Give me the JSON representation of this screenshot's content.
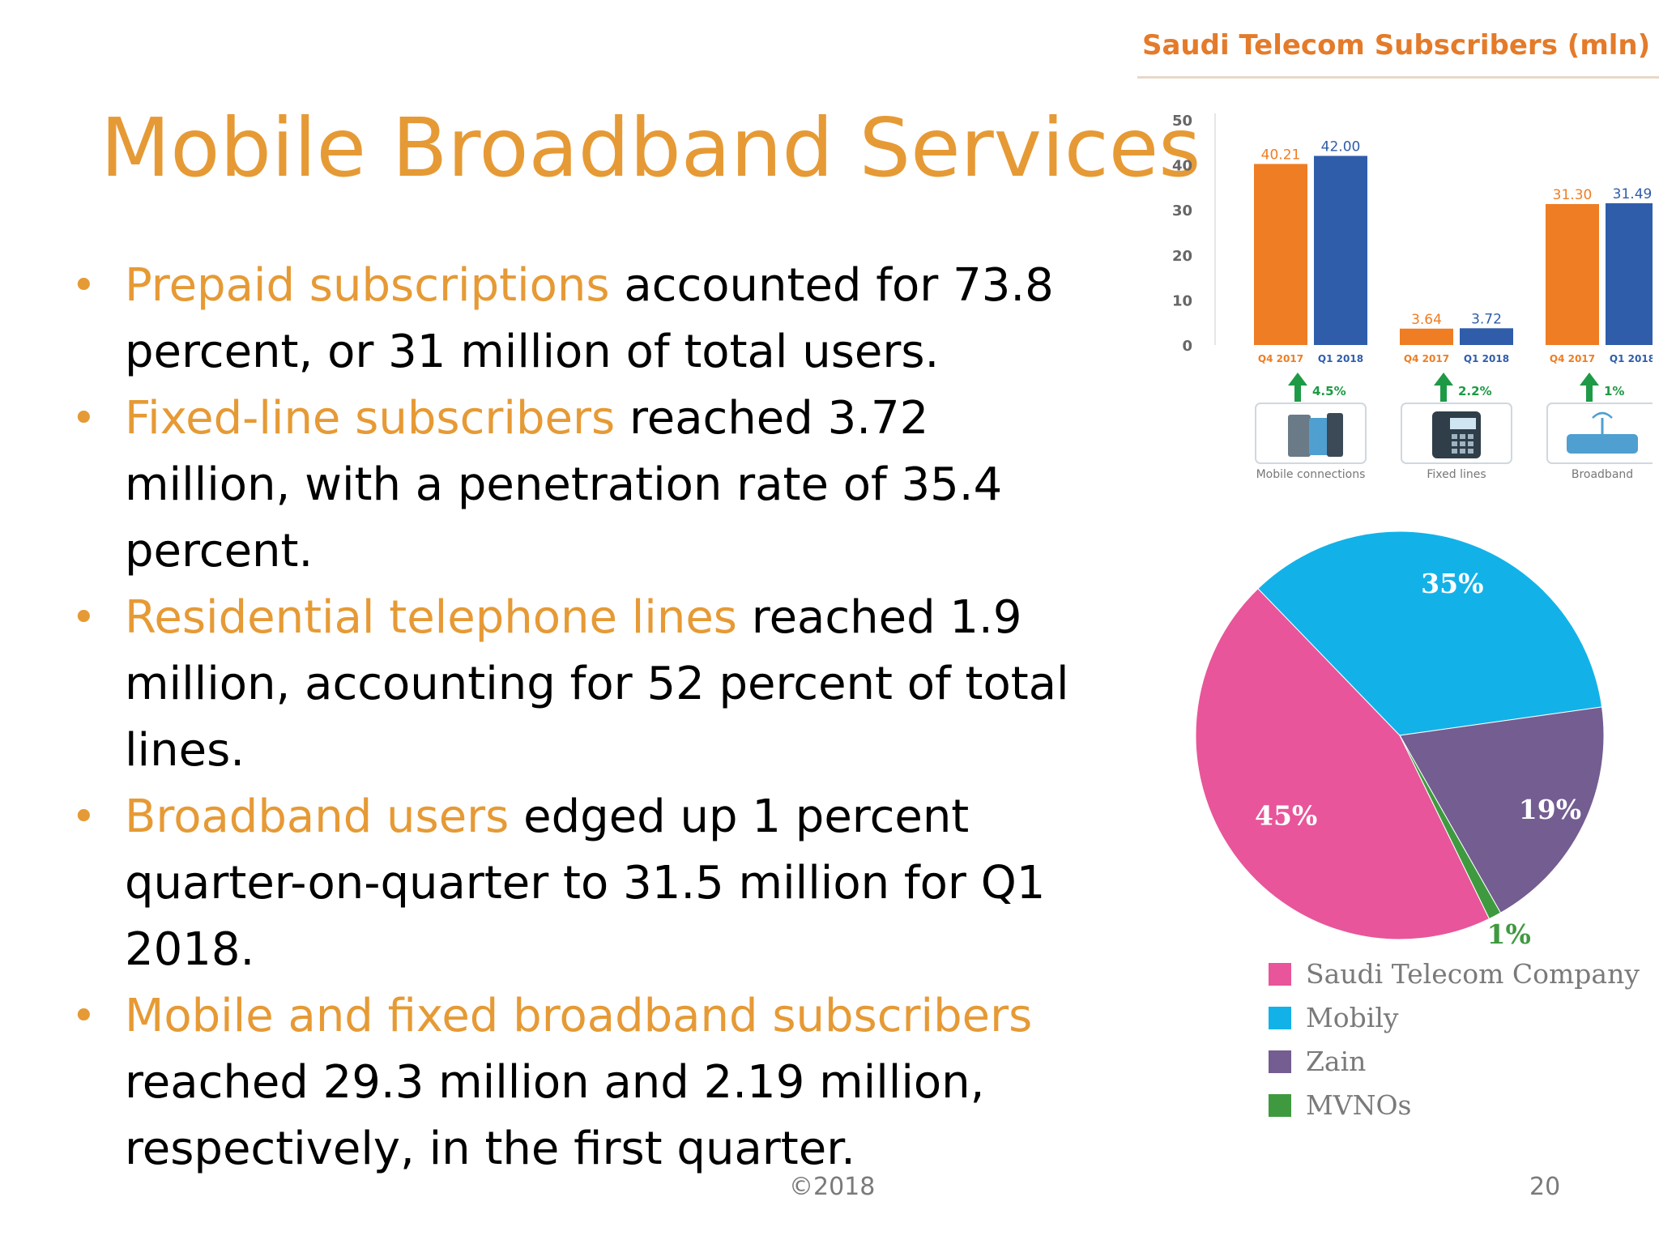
{
  "slide": {
    "title": "Mobile Broadband Services",
    "footer_center": "©2018",
    "page_number": "20",
    "accent_color": "#E69A35",
    "bullets": [
      {
        "highlight": "Prepaid subscriptions",
        "text": " accounted for 73.8 percent, or 31 million of total users."
      },
      {
        "highlight": "Fixed-line subscribers",
        "text": " reached 3.72 million, with a penetration rate of 35.4 percent."
      },
      {
        "highlight": "Residential telephone lines",
        "text": " reached 1.9 million, accounting for 52 percent of total lines."
      },
      {
        "highlight": "Broadband users",
        "text": " edged up 1 percent quarter-on-quarter to 31.5 million for Q1 2018."
      },
      {
        "highlight": "Mobile and fixed broadband subscribers",
        "text": " reached 29.3 million and 2.19 million, respectively, in the first quarter."
      }
    ]
  },
  "chart_data": [
    {
      "type": "bar",
      "title": "Saudi Telecom Subscribers (mln)",
      "ylim": [
        0,
        50
      ],
      "yticks": [
        0,
        10,
        20,
        30,
        40,
        50
      ],
      "categories": [
        "Mobile connections",
        "Fixed lines",
        "Broadband"
      ],
      "period_labels": [
        "Q4 2017",
        "Q1 2018"
      ],
      "series": [
        {
          "color": "#EE7D23",
          "values": [
            40.21,
            3.64,
            31.3
          ]
        },
        {
          "color": "#2F5DAA",
          "values": [
            42.0,
            3.72,
            31.49
          ]
        }
      ],
      "value_labels": [
        [
          "40.21",
          "3.64",
          "31.30"
        ],
        [
          "42.00",
          "3.72",
          "31.49"
        ]
      ],
      "growth_labels": [
        "4.5%",
        "2.2%",
        "1%"
      ],
      "growth_arrow_color": "#1E9A46",
      "icons": [
        "mobile-connections-icon",
        "fixed-lines-icon",
        "broadband-router-icon"
      ]
    },
    {
      "type": "pie",
      "labels": [
        "Saudi Telecom Company",
        "Mobily",
        "Zain",
        "MVNOs"
      ],
      "values": [
        45,
        35,
        19,
        1
      ],
      "value_labels": [
        "45%",
        "35%",
        "19%",
        "1%"
      ],
      "colors": [
        "#E8559A",
        "#12B2E8",
        "#735D91",
        "#3F9A3F"
      ],
      "legend_placement": "bottom"
    }
  ]
}
